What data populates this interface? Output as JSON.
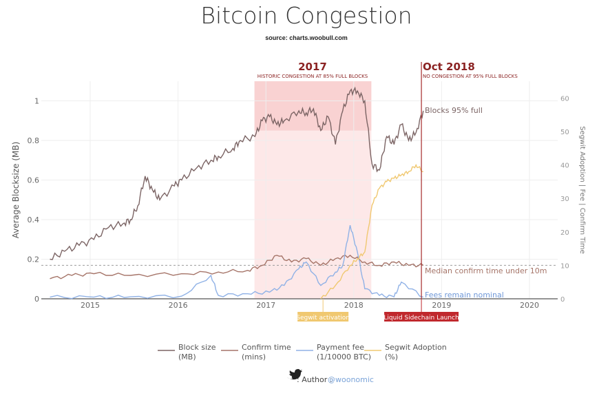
{
  "chart_data": {
    "type": "line",
    "title": "Bitcoin Congestion",
    "subtitle": "source: charts.woobull.com",
    "ylabel": "Average Blocksize (MB)",
    "y2label": "Segwit Adoption | Fee | Confirm Time",
    "xlim": [
      "2014-06",
      "2020-04"
    ],
    "ylim": [
      0,
      1.1
    ],
    "y2lim": [
      0,
      65
    ],
    "xticks": [
      "2015",
      "2016",
      "2017",
      "2018",
      "2019",
      "2020"
    ],
    "yticks": [
      "0",
      "0.2",
      "0.4",
      "0.6",
      "0.8",
      "1"
    ],
    "y2ticks": [
      "0",
      "10",
      "20",
      "30",
      "40",
      "50",
      "60"
    ],
    "grid": true,
    "legend_position": "bottom",
    "series": [
      {
        "name": "Block size (MB)",
        "axis": "left",
        "color": "#7b6464",
        "x": [
          "2014-07",
          "2014-09",
          "2014-11",
          "2015-01",
          "2015-03",
          "2015-05",
          "2015-06",
          "2015-07",
          "2015-08",
          "2015-09",
          "2015-10",
          "2015-12",
          "2016-01",
          "2016-03",
          "2016-05",
          "2016-06",
          "2016-08",
          "2016-09",
          "2016-11",
          "2016-12",
          "2017-01",
          "2017-02",
          "2017-03",
          "2017-05",
          "2017-06",
          "2017-07",
          "2017-08",
          "2017-09",
          "2017-10",
          "2017-11",
          "2017-12",
          "2018-01",
          "2018-02",
          "2018-03",
          "2018-04",
          "2018-05",
          "2018-06",
          "2018-07",
          "2018-08",
          "2018-09",
          "2018-10"
        ],
        "values": [
          0.2,
          0.24,
          0.27,
          0.3,
          0.36,
          0.38,
          0.4,
          0.47,
          0.62,
          0.55,
          0.5,
          0.57,
          0.6,
          0.66,
          0.7,
          0.72,
          0.76,
          0.8,
          0.82,
          0.9,
          0.92,
          0.88,
          0.9,
          0.95,
          0.94,
          0.96,
          0.85,
          0.92,
          0.78,
          0.95,
          1.05,
          1.05,
          1.0,
          0.68,
          0.65,
          0.82,
          0.78,
          0.88,
          0.8,
          0.84,
          0.95
        ]
      },
      {
        "name": "Confirm time (mins)",
        "axis": "right",
        "color": "#a57468",
        "x": [
          "2014-07",
          "2014-10",
          "2015-01",
          "2015-06",
          "2016-01",
          "2016-06",
          "2016-10",
          "2016-12",
          "2017-02",
          "2017-04",
          "2017-06",
          "2017-08",
          "2017-10",
          "2017-12",
          "2018-02",
          "2018-04",
          "2018-06",
          "2018-08",
          "2018-10"
        ],
        "values": [
          6,
          7,
          7.5,
          7,
          7.5,
          8,
          8.5,
          10,
          13,
          11,
          12,
          10,
          12,
          13,
          11,
          10,
          11,
          10,
          10
        ]
      },
      {
        "name": "Payment fee (1/10000 BTC)",
        "axis": "right",
        "color": "#8fb1e6",
        "x": [
          "2014-07",
          "2015-01",
          "2015-06",
          "2016-01",
          "2016-05",
          "2016-06",
          "2016-10",
          "2017-01",
          "2017-03",
          "2017-05",
          "2017-06",
          "2017-08",
          "2017-10",
          "2017-11",
          "2017-12",
          "2018-01",
          "2018-02",
          "2018-04",
          "2018-06",
          "2018-07",
          "2018-10"
        ],
        "values": [
          0.5,
          0.5,
          0.6,
          0.8,
          7,
          1,
          1.5,
          2,
          4,
          9,
          11,
          4,
          8,
          10,
          22,
          14,
          3,
          1,
          0.6,
          5,
          0.5
        ]
      },
      {
        "name": "Segwit Adoption (%)",
        "axis": "right",
        "color": "#f0c870",
        "x": [
          "2017-08",
          "2017-10",
          "2017-12",
          "2018-01",
          "2018-02",
          "2018-03",
          "2018-04",
          "2018-05",
          "2018-06",
          "2018-07",
          "2018-08",
          "2018-09",
          "2018-10"
        ],
        "values": [
          0,
          4,
          10,
          12,
          14,
          28,
          33,
          35,
          36,
          37,
          38,
          40,
          38
        ]
      }
    ],
    "annotations": {
      "period_2017": {
        "heading": "2017",
        "text": "HISTORIC CONGESTION AT 85% FULL BLOCKS"
      },
      "oct_2018": {
        "heading": "Oct 2018",
        "text": "NO CONGESTION AT 95% FULL BLOCKS"
      },
      "blocks_label": "Blocks 95% full",
      "confirm_label": "Median confirm time under 10m",
      "fees_label": "Fees remain nominal",
      "segwit_activation": "Segwit activation",
      "liquid_launch": "Liquid Sidechain Launch",
      "confirm_threshold": 10
    }
  },
  "legend": [
    {
      "line1": "Block size",
      "line2": "(MB)",
      "color": "#7b6464"
    },
    {
      "line1": "Confirm time",
      "line2": "(mins)",
      "color": "#a57468"
    },
    {
      "line1": "Payment fee",
      "line2": "(1/10000 BTC)",
      "color": "#8fb1e6"
    },
    {
      "line1": "Segwit Adoption",
      "line2": "(%)",
      "color": "#f0c870"
    }
  ],
  "footer": {
    "author_label": ": Author : ",
    "handle": "@woonomic"
  }
}
